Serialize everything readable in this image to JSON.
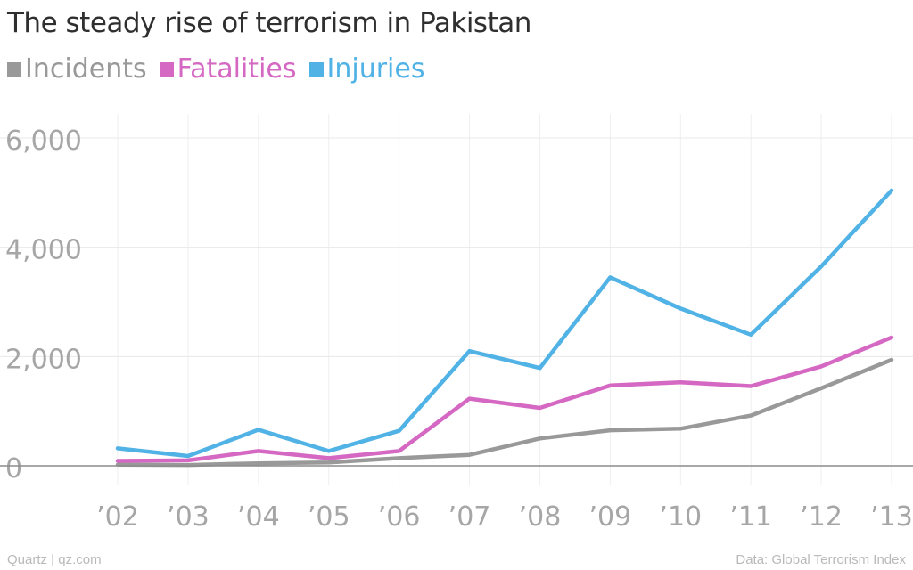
{
  "chart_data": {
    "type": "line",
    "title": "The steady rise of terrorism in Pakistan",
    "categories": [
      "’02",
      "’03",
      "’04",
      "’05",
      "’06",
      "’07",
      "’08",
      "’09",
      "’10",
      "’11",
      "’12",
      "’13"
    ],
    "series": [
      {
        "name": "Incidents",
        "color": "#999999",
        "values": [
          20,
          15,
          45,
          60,
          140,
          200,
          500,
          650,
          680,
          920,
          1420,
          1940
        ]
      },
      {
        "name": "Fatalities",
        "color": "#d468c2",
        "values": [
          90,
          100,
          270,
          140,
          270,
          1230,
          1060,
          1470,
          1530,
          1460,
          1820,
          2350
        ]
      },
      {
        "name": "Injuries",
        "color": "#51b2e5",
        "values": [
          320,
          180,
          660,
          270,
          640,
          2100,
          1790,
          3450,
          2880,
          2400,
          3650,
          5040
        ]
      }
    ],
    "yticks": [
      "0",
      "2,000",
      "4,000",
      "6,000"
    ],
    "ytick_values": [
      0,
      2000,
      4000,
      6000
    ],
    "ylim": [
      0,
      6000
    ],
    "xlabel": "",
    "ylabel": "",
    "grid": true,
    "legend": "top-left"
  },
  "footer": {
    "credit": "Quartz | qz.com",
    "source": "Data: Global Terrorism Index"
  }
}
